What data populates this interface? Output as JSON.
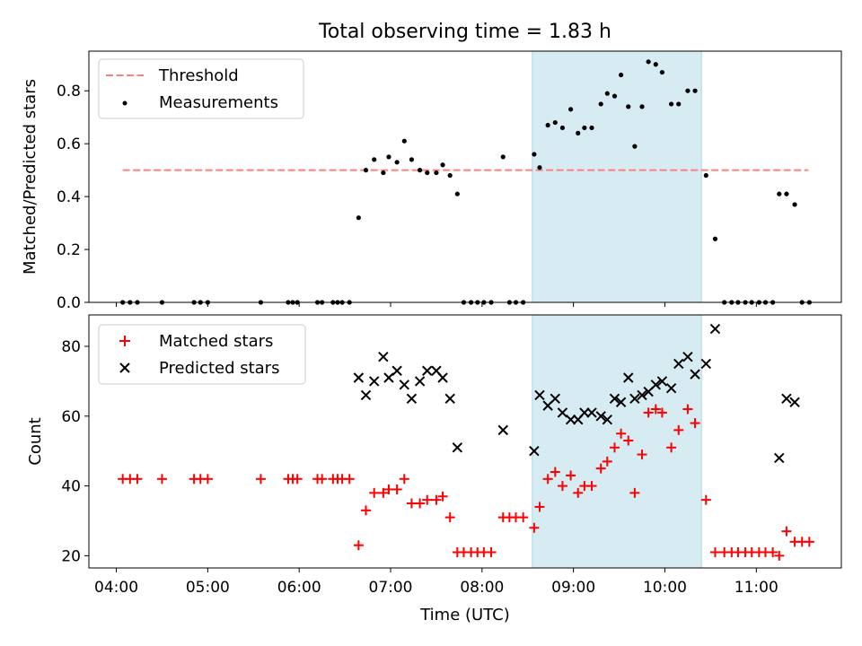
{
  "chart_data": [
    {
      "type": "scatter",
      "title": "Total observing time = 1.83 h",
      "xlabel": "",
      "ylabel": "Matched/Predicted stars",
      "x_unit": "hours UTC",
      "xlim": [
        3.7,
        11.93
      ],
      "ylim": [
        0,
        0.95
      ],
      "yticks": [
        0.0,
        0.2,
        0.4,
        0.6,
        0.8
      ],
      "ytick_labels": [
        "0.0",
        "0.2",
        "0.4",
        "0.6",
        "0.8"
      ],
      "highlight_span": [
        8.55,
        10.4
      ],
      "threshold": {
        "name": "Threshold",
        "value": 0.5,
        "x_range": [
          4.07,
          11.57
        ],
        "color": "#ff7f7f"
      },
      "legend": {
        "location": "upper-left",
        "entries": [
          "Threshold",
          "Measurements"
        ]
      },
      "series": [
        {
          "name": "Measurements",
          "color": "#000000",
          "marker": "dot",
          "points": [
            [
              4.07,
              0
            ],
            [
              4.15,
              0
            ],
            [
              4.23,
              0
            ],
            [
              4.5,
              0
            ],
            [
              4.85,
              0
            ],
            [
              4.92,
              0
            ],
            [
              5.0,
              0
            ],
            [
              5.58,
              0
            ],
            [
              5.88,
              0
            ],
            [
              5.93,
              0
            ],
            [
              5.98,
              0
            ],
            [
              6.2,
              0
            ],
            [
              6.25,
              0
            ],
            [
              6.37,
              0
            ],
            [
              6.42,
              0
            ],
            [
              6.47,
              0
            ],
            [
              6.55,
              0
            ],
            [
              6.65,
              0.32
            ],
            [
              6.73,
              0.5
            ],
            [
              6.82,
              0.54
            ],
            [
              6.92,
              0.49
            ],
            [
              6.98,
              0.55
            ],
            [
              7.07,
              0.53
            ],
            [
              7.15,
              0.61
            ],
            [
              7.23,
              0.54
            ],
            [
              7.32,
              0.5
            ],
            [
              7.4,
              0.49
            ],
            [
              7.5,
              0.49
            ],
            [
              7.57,
              0.52
            ],
            [
              7.65,
              0.48
            ],
            [
              7.73,
              0.41
            ],
            [
              7.8,
              0
            ],
            [
              7.88,
              0
            ],
            [
              7.95,
              0
            ],
            [
              8.02,
              0
            ],
            [
              8.1,
              0
            ],
            [
              8.23,
              0.55
            ],
            [
              8.3,
              0
            ],
            [
              8.37,
              0
            ],
            [
              8.45,
              0
            ],
            [
              8.57,
              0.56
            ],
            [
              8.63,
              0.51
            ],
            [
              8.72,
              0.67
            ],
            [
              8.8,
              0.68
            ],
            [
              8.88,
              0.66
            ],
            [
              8.97,
              0.73
            ],
            [
              9.05,
              0.64
            ],
            [
              9.12,
              0.66
            ],
            [
              9.2,
              0.66
            ],
            [
              9.3,
              0.75
            ],
            [
              9.37,
              0.79
            ],
            [
              9.45,
              0.78
            ],
            [
              9.52,
              0.86
            ],
            [
              9.6,
              0.74
            ],
            [
              9.67,
              0.59
            ],
            [
              9.75,
              0.74
            ],
            [
              9.82,
              0.91
            ],
            [
              9.9,
              0.9
            ],
            [
              9.97,
              0.87
            ],
            [
              10.07,
              0.75
            ],
            [
              10.15,
              0.75
            ],
            [
              10.25,
              0.8
            ],
            [
              10.33,
              0.8
            ],
            [
              10.45,
              0.48
            ],
            [
              10.55,
              0.24
            ],
            [
              10.65,
              0
            ],
            [
              10.73,
              0
            ],
            [
              10.8,
              0
            ],
            [
              10.88,
              0
            ],
            [
              10.95,
              0
            ],
            [
              11.03,
              0
            ],
            [
              11.1,
              0
            ],
            [
              11.18,
              0
            ],
            [
              11.25,
              0.41
            ],
            [
              11.33,
              0.41
            ],
            [
              11.42,
              0.37
            ],
            [
              11.5,
              0
            ],
            [
              11.58,
              0
            ]
          ]
        }
      ]
    },
    {
      "type": "scatter",
      "title": "",
      "xlabel": "Time (UTC)",
      "ylabel": "Count",
      "x_unit": "hours UTC",
      "xlim": [
        3.7,
        11.93
      ],
      "ylim": [
        16.5,
        89
      ],
      "yticks": [
        20,
        40,
        60,
        80
      ],
      "ytick_labels": [
        "20",
        "40",
        "60",
        "80"
      ],
      "xticks": [
        4,
        5,
        6,
        7,
        8,
        9,
        10,
        11
      ],
      "xtick_labels": [
        "04:00",
        "05:00",
        "06:00",
        "07:00",
        "08:00",
        "09:00",
        "10:00",
        "11:00"
      ],
      "highlight_span": [
        8.55,
        10.4
      ],
      "legend": {
        "location": "upper-left",
        "entries": [
          "Matched stars",
          "Predicted stars"
        ]
      },
      "series": [
        {
          "name": "Matched stars",
          "color": "#ff0000",
          "marker": "plus",
          "points": [
            [
              4.07,
              42
            ],
            [
              4.15,
              42
            ],
            [
              4.23,
              42
            ],
            [
              4.5,
              42
            ],
            [
              4.85,
              42
            ],
            [
              4.92,
              42
            ],
            [
              5.0,
              42
            ],
            [
              5.58,
              42
            ],
            [
              5.88,
              42
            ],
            [
              5.93,
              42
            ],
            [
              5.98,
              42
            ],
            [
              6.2,
              42
            ],
            [
              6.25,
              42
            ],
            [
              6.37,
              42
            ],
            [
              6.42,
              42
            ],
            [
              6.47,
              42
            ],
            [
              6.55,
              42
            ],
            [
              6.65,
              23
            ],
            [
              6.73,
              33
            ],
            [
              6.82,
              38
            ],
            [
              6.92,
              38
            ],
            [
              6.98,
              39
            ],
            [
              7.07,
              39
            ],
            [
              7.15,
              42
            ],
            [
              7.23,
              35
            ],
            [
              7.32,
              35
            ],
            [
              7.4,
              36
            ],
            [
              7.5,
              36
            ],
            [
              7.57,
              37
            ],
            [
              7.65,
              31
            ],
            [
              7.73,
              21
            ],
            [
              7.8,
              21
            ],
            [
              7.88,
              21
            ],
            [
              7.95,
              21
            ],
            [
              8.02,
              21
            ],
            [
              8.1,
              21
            ],
            [
              8.23,
              31
            ],
            [
              8.3,
              31
            ],
            [
              8.37,
              31
            ],
            [
              8.45,
              31
            ],
            [
              8.57,
              28
            ],
            [
              8.63,
              34
            ],
            [
              8.72,
              42
            ],
            [
              8.8,
              44
            ],
            [
              8.88,
              40
            ],
            [
              8.97,
              43
            ],
            [
              9.05,
              38
            ],
            [
              9.12,
              40
            ],
            [
              9.2,
              40
            ],
            [
              9.3,
              45
            ],
            [
              9.37,
              47
            ],
            [
              9.45,
              51
            ],
            [
              9.52,
              55
            ],
            [
              9.6,
              53
            ],
            [
              9.67,
              38
            ],
            [
              9.75,
              49
            ],
            [
              9.82,
              61
            ],
            [
              9.9,
              62
            ],
            [
              9.97,
              61
            ],
            [
              10.07,
              51
            ],
            [
              10.15,
              56
            ],
            [
              10.25,
              62
            ],
            [
              10.33,
              58
            ],
            [
              10.45,
              36
            ],
            [
              10.55,
              21
            ],
            [
              10.65,
              21
            ],
            [
              10.73,
              21
            ],
            [
              10.8,
              21
            ],
            [
              10.88,
              21
            ],
            [
              10.95,
              21
            ],
            [
              11.03,
              21
            ],
            [
              11.1,
              21
            ],
            [
              11.18,
              21
            ],
            [
              11.25,
              20
            ],
            [
              11.33,
              27
            ],
            [
              11.42,
              24
            ],
            [
              11.5,
              24
            ],
            [
              11.58,
              24
            ]
          ]
        },
        {
          "name": "Predicted stars",
          "color": "#000000",
          "marker": "x",
          "points": [
            [
              6.65,
              71
            ],
            [
              6.73,
              66
            ],
            [
              6.82,
              70
            ],
            [
              6.92,
              77
            ],
            [
              6.98,
              71
            ],
            [
              7.07,
              73
            ],
            [
              7.15,
              69
            ],
            [
              7.23,
              65
            ],
            [
              7.32,
              70
            ],
            [
              7.4,
              73
            ],
            [
              7.5,
              73
            ],
            [
              7.57,
              71
            ],
            [
              7.65,
              65
            ],
            [
              7.73,
              51
            ],
            [
              8.23,
              56
            ],
            [
              8.57,
              50
            ],
            [
              8.63,
              66
            ],
            [
              8.72,
              63
            ],
            [
              8.8,
              65
            ],
            [
              8.88,
              61
            ],
            [
              8.97,
              59
            ],
            [
              9.05,
              59
            ],
            [
              9.12,
              61
            ],
            [
              9.2,
              61
            ],
            [
              9.3,
              60
            ],
            [
              9.37,
              59
            ],
            [
              9.45,
              65
            ],
            [
              9.52,
              64
            ],
            [
              9.6,
              71
            ],
            [
              9.67,
              65
            ],
            [
              9.75,
              66
            ],
            [
              9.82,
              67
            ],
            [
              9.9,
              69
            ],
            [
              9.97,
              70
            ],
            [
              10.07,
              68
            ],
            [
              10.15,
              75
            ],
            [
              10.25,
              77
            ],
            [
              10.33,
              72
            ],
            [
              10.45,
              75
            ],
            [
              10.55,
              85
            ],
            [
              11.25,
              48
            ],
            [
              11.33,
              65
            ],
            [
              11.42,
              64
            ]
          ]
        }
      ]
    }
  ]
}
